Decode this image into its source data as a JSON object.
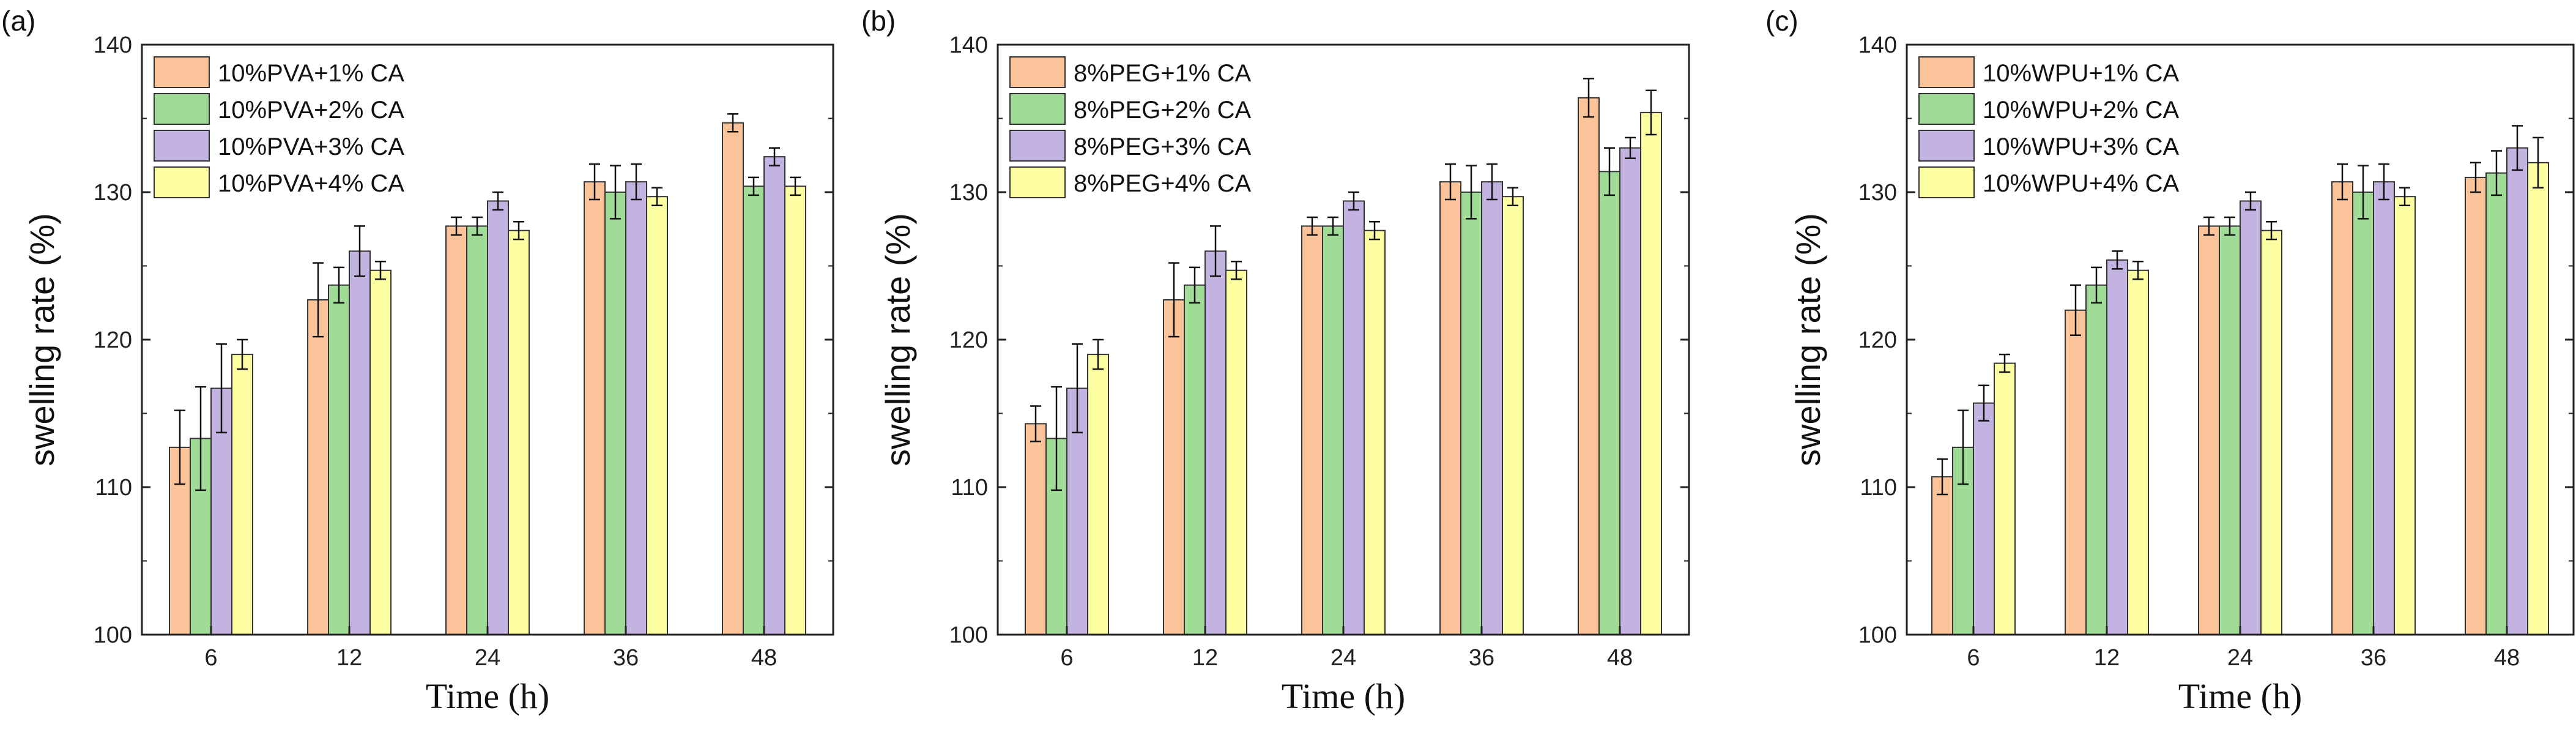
{
  "chart_data": [
    {
      "type": "bar",
      "panel_label": "(a)",
      "title": "",
      "xlabel": "Time (h)",
      "ylabel": "swelling rate (%)",
      "ylim": [
        100,
        140
      ],
      "yticks": [
        100,
        110,
        120,
        130,
        140
      ],
      "categories": [
        "6",
        "12",
        "24",
        "36",
        "48"
      ],
      "legend_position": "top-left",
      "series": [
        {
          "name": "10%PVA+1% CA",
          "color": "#fbc39a",
          "values": [
            112.7,
            122.7,
            127.7,
            130.7,
            134.7
          ],
          "errors": [
            2.5,
            2.5,
            0.6,
            1.2,
            0.6
          ]
        },
        {
          "name": "10%PVA+2% CA",
          "color": "#a0dc98",
          "values": [
            113.3,
            123.7,
            127.7,
            130.0,
            130.4
          ],
          "errors": [
            3.5,
            1.2,
            0.6,
            1.8,
            0.6
          ]
        },
        {
          "name": "10%PVA+3% CA",
          "color": "#c2b3e0",
          "values": [
            116.7,
            126.0,
            129.4,
            130.7,
            132.4
          ],
          "errors": [
            3.0,
            1.7,
            0.6,
            1.2,
            0.6
          ]
        },
        {
          "name": "10%PVA+4% CA",
          "color": "#fefea2",
          "values": [
            119.0,
            124.7,
            127.4,
            129.7,
            130.4
          ],
          "errors": [
            1.0,
            0.6,
            0.6,
            0.6,
            0.6
          ]
        }
      ]
    },
    {
      "type": "bar",
      "panel_label": "(b)",
      "title": "",
      "xlabel": "Time (h)",
      "ylabel": "swelling rate (%)",
      "ylim": [
        100,
        140
      ],
      "yticks": [
        100,
        110,
        120,
        130,
        140
      ],
      "categories": [
        "6",
        "12",
        "24",
        "36",
        "48"
      ],
      "legend_position": "top-left",
      "series": [
        {
          "name": "8%PEG+1% CA",
          "color": "#fbc39a",
          "values": [
            114.3,
            122.7,
            127.7,
            130.7,
            136.4
          ],
          "errors": [
            1.2,
            2.5,
            0.6,
            1.2,
            1.3
          ]
        },
        {
          "name": "8%PEG+2% CA",
          "color": "#a0dc98",
          "values": [
            113.3,
            123.7,
            127.7,
            130.0,
            131.4
          ],
          "errors": [
            3.5,
            1.2,
            0.6,
            1.8,
            1.6
          ]
        },
        {
          "name": "8%PEG+3% CA",
          "color": "#c2b3e0",
          "values": [
            116.7,
            126.0,
            129.4,
            130.7,
            133.0
          ],
          "errors": [
            3.0,
            1.7,
            0.6,
            1.2,
            0.7
          ]
        },
        {
          "name": "8%PEG+4% CA",
          "color": "#fefea2",
          "values": [
            119.0,
            124.7,
            127.4,
            129.7,
            135.4
          ],
          "errors": [
            1.0,
            0.6,
            0.6,
            0.6,
            1.5
          ]
        }
      ]
    },
    {
      "type": "bar",
      "panel_label": "(c)",
      "title": "",
      "xlabel": "Time (h)",
      "ylabel": "swelling rate (%)",
      "ylim": [
        100,
        140
      ],
      "yticks": [
        100,
        110,
        120,
        130,
        140
      ],
      "categories": [
        "6",
        "12",
        "24",
        "36",
        "48"
      ],
      "legend_position": "top-left",
      "series": [
        {
          "name": "10%WPU+1% CA",
          "color": "#fbc39a",
          "values": [
            110.7,
            122.0,
            127.7,
            130.7,
            131.0
          ],
          "errors": [
            1.2,
            1.7,
            0.6,
            1.2,
            1.0
          ]
        },
        {
          "name": "10%WPU+2% CA",
          "color": "#a0dc98",
          "values": [
            112.7,
            123.7,
            127.7,
            130.0,
            131.3
          ],
          "errors": [
            2.5,
            1.2,
            0.6,
            1.8,
            1.5
          ]
        },
        {
          "name": "10%WPU+3% CA",
          "color": "#c2b3e0",
          "values": [
            115.7,
            125.4,
            129.4,
            130.7,
            133.0
          ],
          "errors": [
            1.2,
            0.6,
            0.6,
            1.2,
            1.5
          ]
        },
        {
          "name": "10%WPU+4% CA",
          "color": "#fefea2",
          "values": [
            118.4,
            124.7,
            127.4,
            129.7,
            132.0
          ],
          "errors": [
            0.6,
            0.6,
            0.6,
            0.6,
            1.7
          ]
        }
      ]
    }
  ]
}
